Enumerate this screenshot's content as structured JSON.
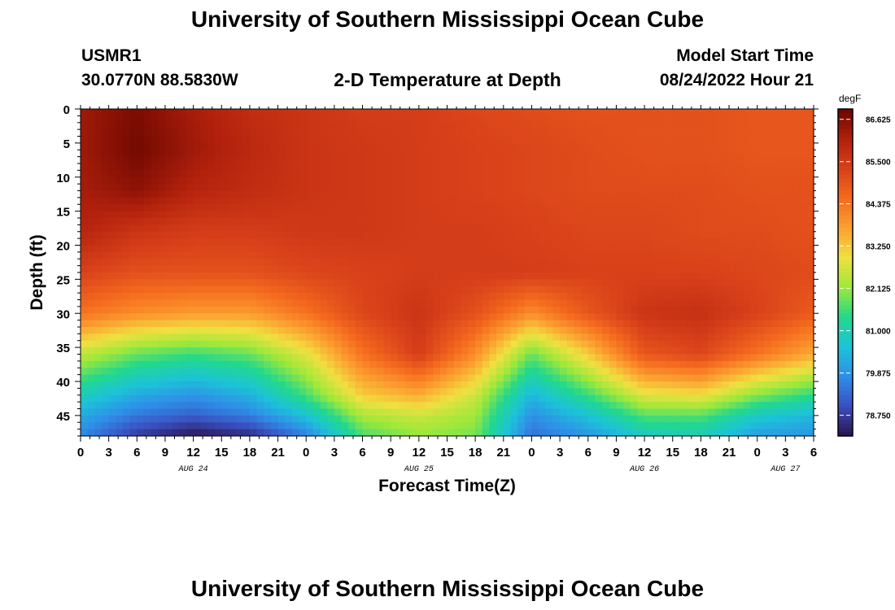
{
  "header": {
    "title": "University of Southern Mississippi Ocean Cube",
    "station_id": "USMR1",
    "location": "30.0770N  88.5830W",
    "subtitle": "2-D Temperature at Depth",
    "model_start_label": "Model Start Time",
    "model_start_value": "08/24/2022 Hour 21"
  },
  "footer": {
    "title": "University of Southern Mississippi Ocean Cube"
  },
  "colors": {
    "scale": [
      "#2a1450",
      "#3a4fc0",
      "#2f8ee8",
      "#1cc3d8",
      "#22d88c",
      "#9ee83a",
      "#f0e040",
      "#fca030",
      "#f46a1e",
      "#d8401a",
      "#b0200c",
      "#6a0600"
    ]
  },
  "chart_data": {
    "type": "heatmap",
    "title": "2-D Temperature at Depth",
    "xlabel": "Forecast Time(Z)",
    "ylabel": "Depth (ft)",
    "x_unit": "hours from AUG 24 00Z",
    "xlim": [
      0,
      78
    ],
    "ylim": [
      0,
      48
    ],
    "x_ticks": [
      0,
      3,
      6,
      9,
      12,
      15,
      18,
      21,
      24,
      27,
      30,
      33,
      36,
      39,
      42,
      45,
      48,
      51,
      54,
      57,
      60,
      63,
      66,
      69,
      72,
      75,
      78
    ],
    "x_tick_labels": [
      "0",
      "3",
      "6",
      "9",
      "12",
      "15",
      "18",
      "21",
      "0",
      "3",
      "6",
      "9",
      "12",
      "15",
      "18",
      "21",
      "0",
      "3",
      "6",
      "9",
      "12",
      "15",
      "18",
      "21",
      "0",
      "3",
      "6"
    ],
    "date_labels": [
      {
        "x": 12,
        "label": "AUG 24"
      },
      {
        "x": 36,
        "label": "AUG 25"
      },
      {
        "x": 60,
        "label": "AUG 26"
      },
      {
        "x": 75,
        "label": "AUG 27"
      }
    ],
    "y_ticks": [
      0,
      5,
      10,
      15,
      20,
      25,
      30,
      35,
      40,
      45
    ],
    "y_tick_labels": [
      "0",
      "5",
      "10",
      "15",
      "20",
      "25",
      "30",
      "35",
      "40",
      "45"
    ],
    "colorbar": {
      "unit": "degF",
      "min": 78.2,
      "max": 86.9,
      "ticks": [
        86.625,
        85.5,
        84.375,
        83.25,
        82.125,
        81.0,
        79.875,
        78.75
      ],
      "tick_labels": [
        "86.625",
        "85.500",
        "84.375",
        "83.250",
        "82.125",
        "81.000",
        "79.875",
        "78.750"
      ]
    },
    "grid": {
      "times": [
        0,
        6,
        12,
        18,
        24,
        30,
        36,
        42,
        48,
        54,
        60,
        66,
        72,
        78
      ],
      "depths": [
        0,
        6,
        12,
        18,
        24,
        30,
        36,
        42,
        45,
        48
      ],
      "values": [
        [
          86.3,
          86.7,
          86.2,
          85.8,
          85.6,
          85.4,
          85.4,
          85.2,
          85.1,
          85.0,
          85.0,
          85.0,
          84.9,
          84.9
        ],
        [
          86.3,
          86.8,
          86.3,
          85.9,
          85.6,
          85.5,
          85.4,
          85.3,
          85.2,
          85.1,
          85.0,
          85.0,
          84.9,
          84.9
        ],
        [
          86.2,
          86.5,
          86.0,
          85.8,
          85.6,
          85.5,
          85.4,
          85.3,
          85.2,
          85.1,
          85.1,
          85.1,
          85.0,
          85.0
        ],
        [
          86.0,
          85.6,
          85.4,
          85.4,
          85.5,
          85.5,
          85.4,
          85.4,
          85.3,
          85.2,
          85.2,
          85.1,
          85.1,
          85.0
        ],
        [
          85.3,
          85.0,
          85.0,
          85.0,
          85.2,
          85.3,
          85.4,
          85.4,
          85.4,
          85.3,
          85.3,
          85.3,
          85.2,
          85.1
        ],
        [
          84.4,
          84.0,
          83.8,
          83.8,
          84.4,
          85.2,
          85.6,
          85.0,
          84.0,
          84.9,
          85.6,
          85.7,
          85.3,
          84.8
        ],
        [
          82.5,
          81.8,
          81.5,
          81.8,
          82.8,
          84.4,
          85.4,
          84.0,
          81.8,
          83.2,
          84.9,
          85.2,
          84.4,
          83.6
        ],
        [
          80.9,
          80.2,
          79.9,
          80.3,
          81.6,
          83.2,
          83.6,
          82.6,
          80.4,
          81.5,
          82.8,
          83.0,
          82.0,
          81.4
        ],
        [
          80.2,
          79.5,
          79.2,
          79.6,
          80.6,
          82.3,
          82.6,
          82.2,
          79.8,
          80.6,
          81.7,
          81.7,
          80.8,
          80.4
        ],
        [
          79.7,
          78.7,
          78.2,
          78.5,
          79.6,
          81.6,
          82.1,
          81.9,
          79.4,
          79.9,
          80.8,
          80.9,
          80.0,
          79.9
        ]
      ]
    }
  }
}
